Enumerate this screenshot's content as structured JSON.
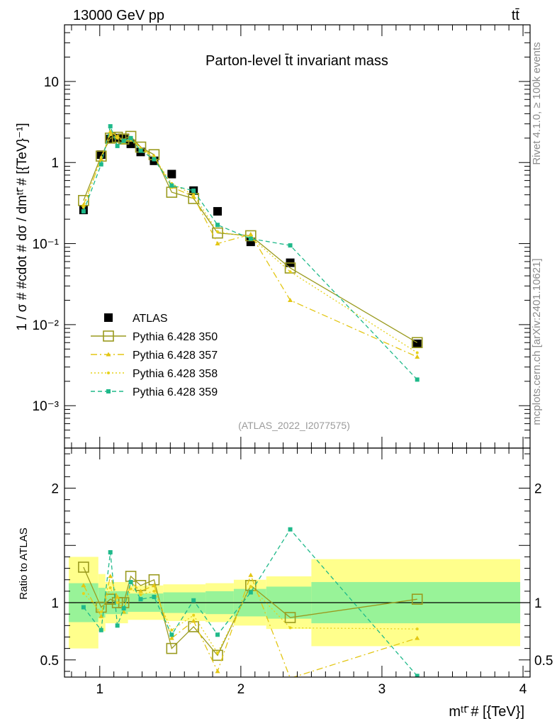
{
  "header": {
    "left": "13000 GeV pp",
    "right": "tt̄"
  },
  "side_labels": {
    "rivet": "Rivet 4.1.0, ≥ 100k events",
    "mcplots": "mcplots.cern.ch [arXiv:2401.10621]"
  },
  "chart_data": [
    {
      "type": "scatter",
      "panel": "main",
      "title": "Parton-level t̄t invariant mass",
      "watermark": "(ATLAS_2022_I2077575)",
      "ylabel": "1 / σ # #cdot # dσ / dmᵗᵗ̄ # [{TeV}⁻¹]",
      "yscale": "log",
      "ylim": [
        0.0003,
        50
      ],
      "xlim": [
        0.75,
        4.05
      ],
      "y_ticks": [
        {
          "value": 10,
          "label": "10"
        },
        {
          "value": 1,
          "label": "1"
        },
        {
          "value": 0.1,
          "label": "10⁻¹"
        },
        {
          "value": 0.01,
          "label": "10⁻²"
        },
        {
          "value": 0.001,
          "label": "10⁻³"
        }
      ],
      "x": [
        0.885,
        1.01,
        1.075,
        1.125,
        1.17,
        1.22,
        1.29,
        1.385,
        1.51,
        1.665,
        1.835,
        2.07,
        2.35,
        3.25
      ],
      "legend": {
        "position": "bottom-left"
      },
      "series": [
        {
          "name": "ATLAS",
          "color": "#000000",
          "marker": "square-filled",
          "values": [
            0.26,
            1.25,
            1.95,
            2.0,
            1.95,
            1.7,
            1.35,
            1.05,
            0.72,
            0.45,
            0.25,
            0.105,
            0.058,
            0.0058
          ]
        },
        {
          "name": "Pythia 6.428 350",
          "color": "#9a9a1e",
          "marker": "square-open",
          "line": "solid",
          "values": [
            0.34,
            1.2,
            2.0,
            2.05,
            1.95,
            2.1,
            1.55,
            1.25,
            0.43,
            0.36,
            0.135,
            0.125,
            0.05,
            0.006
          ]
        },
        {
          "name": "Pythia 6.428 357",
          "color": "#e3c613",
          "marker": "tri",
          "line": "dashdot",
          "values": [
            0.3,
            1.1,
            2.4,
            2.1,
            1.8,
            2.0,
            1.5,
            1.2,
            0.5,
            0.38,
            0.1,
            0.13,
            0.02,
            0.004
          ]
        },
        {
          "name": "Pythia 6.428 358",
          "color": "#e6d21a",
          "marker": "dot",
          "line": "dotted",
          "values": [
            0.28,
            1.15,
            2.2,
            2.0,
            1.85,
            1.9,
            1.45,
            1.15,
            0.55,
            0.4,
            0.14,
            0.12,
            0.045,
            0.0045
          ]
        },
        {
          "name": "Pythia 6.428 359",
          "color": "#1fb98a",
          "marker": "square-small",
          "line": "dashed",
          "values": [
            0.25,
            0.95,
            2.8,
            1.6,
            1.85,
            2.0,
            1.4,
            1.1,
            0.52,
            0.45,
            0.17,
            0.115,
            0.095,
            0.0021
          ]
        }
      ]
    },
    {
      "type": "scatter",
      "panel": "ratio",
      "ylabel": "Ratio to ATLAS",
      "xlabel": "mᵗᵗ̄ # [{TeV}]",
      "xlim": [
        0.75,
        4.05
      ],
      "ylim": [
        0.35,
        2.35
      ],
      "x_ticks": [
        {
          "value": 1,
          "label": "1"
        },
        {
          "value": 2,
          "label": "2"
        },
        {
          "value": 3,
          "label": "3"
        },
        {
          "value": 4,
          "label": "4"
        }
      ],
      "y_ticks": [
        {
          "value": 2,
          "label": "2"
        },
        {
          "value": 1,
          "label": "1"
        },
        {
          "value": 0.5,
          "label": "0.5"
        }
      ],
      "reference": 1,
      "bands": [
        {
          "x0": 0.78,
          "x1": 0.99,
          "green": [
            0.83,
            1.17
          ],
          "yellow": [
            0.6,
            1.4
          ]
        },
        {
          "x0": 0.99,
          "x1": 1.04,
          "green": [
            0.87,
            1.13
          ],
          "yellow": [
            0.75,
            1.25
          ]
        },
        {
          "x0": 1.04,
          "x1": 1.2,
          "green": [
            0.9,
            1.1
          ],
          "yellow": [
            0.82,
            1.18
          ]
        },
        {
          "x0": 1.2,
          "x1": 1.45,
          "green": [
            0.92,
            1.08
          ],
          "yellow": [
            0.85,
            1.15
          ]
        },
        {
          "x0": 1.45,
          "x1": 1.75,
          "green": [
            0.91,
            1.09
          ],
          "yellow": [
            0.84,
            1.16
          ]
        },
        {
          "x0": 1.75,
          "x1": 1.95,
          "green": [
            0.9,
            1.1
          ],
          "yellow": [
            0.83,
            1.17
          ]
        },
        {
          "x0": 1.95,
          "x1": 2.18,
          "green": [
            0.88,
            1.12
          ],
          "yellow": [
            0.8,
            1.2
          ]
        },
        {
          "x0": 2.18,
          "x1": 2.5,
          "green": [
            0.86,
            1.14
          ],
          "yellow": [
            0.77,
            1.23
          ]
        },
        {
          "x0": 2.5,
          "x1": 3.98,
          "green": [
            0.82,
            1.18
          ],
          "yellow": [
            0.62,
            1.38
          ]
        }
      ],
      "x": [
        0.885,
        1.01,
        1.075,
        1.125,
        1.17,
        1.22,
        1.29,
        1.385,
        1.51,
        1.665,
        1.835,
        2.07,
        2.35,
        3.25
      ],
      "series": [
        {
          "name": "Pythia 6.428 350",
          "color": "#9a9a1e",
          "marker": "square-open",
          "line": "solid",
          "values": [
            1.31,
            0.96,
            1.03,
            1.0,
            1.0,
            1.23,
            1.15,
            1.2,
            0.6,
            0.79,
            0.54,
            1.15,
            0.87,
            1.03
          ]
        },
        {
          "name": "Pythia 6.428 357",
          "color": "#e3c613",
          "marker": "tri",
          "line": "dashdot",
          "values": [
            1.15,
            0.88,
            1.23,
            1.05,
            0.92,
            1.18,
            1.1,
            1.15,
            0.69,
            0.84,
            0.4,
            1.24,
            0.34,
            0.69
          ]
        },
        {
          "name": "Pythia 6.428 358",
          "color": "#e6d21a",
          "marker": "dot",
          "line": "dotted",
          "values": [
            1.08,
            0.92,
            1.13,
            1.0,
            0.95,
            1.12,
            1.07,
            1.1,
            0.76,
            0.89,
            0.56,
            1.14,
            0.78,
            0.77
          ]
        },
        {
          "name": "Pythia 6.428 359",
          "color": "#1fb98a",
          "marker": "square-small",
          "line": "dashed",
          "values": [
            0.96,
            0.76,
            1.44,
            0.8,
            0.95,
            1.18,
            1.03,
            1.05,
            0.72,
            1.02,
            0.72,
            1.09,
            1.64,
            0.36
          ]
        }
      ]
    }
  ]
}
